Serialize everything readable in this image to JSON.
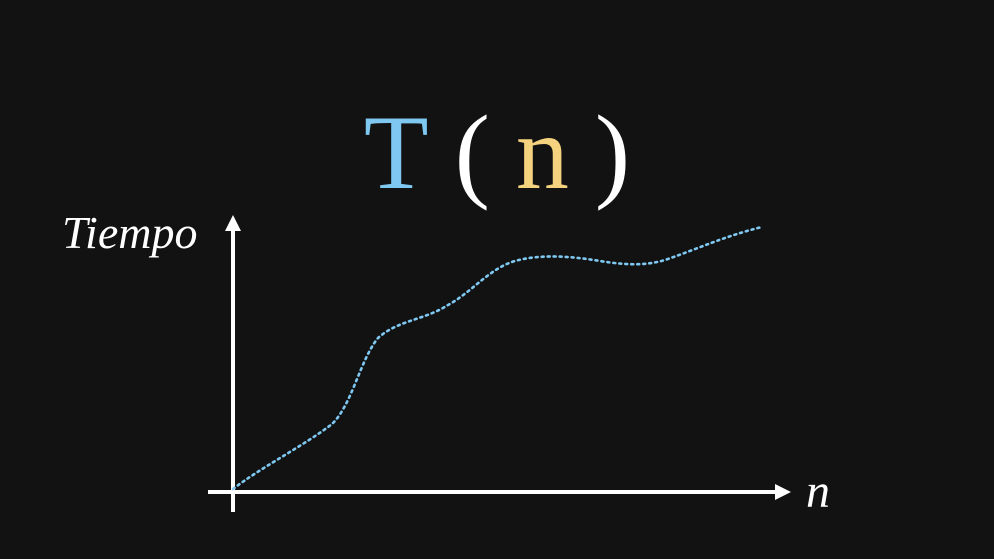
{
  "title": {
    "func": "T",
    "open_paren": "(",
    "arg": "n",
    "close_paren": ")"
  },
  "axes": {
    "y_label": "Tiempo",
    "x_label": "n"
  },
  "colors": {
    "background": "#121212",
    "func": "#7ec8f2",
    "arg": "#f5d37e",
    "text": "#ffffff",
    "axis": "#ffffff",
    "curve": "#7ec8f2"
  },
  "curve": {
    "style": "dotted",
    "color_name": "light-blue"
  }
}
